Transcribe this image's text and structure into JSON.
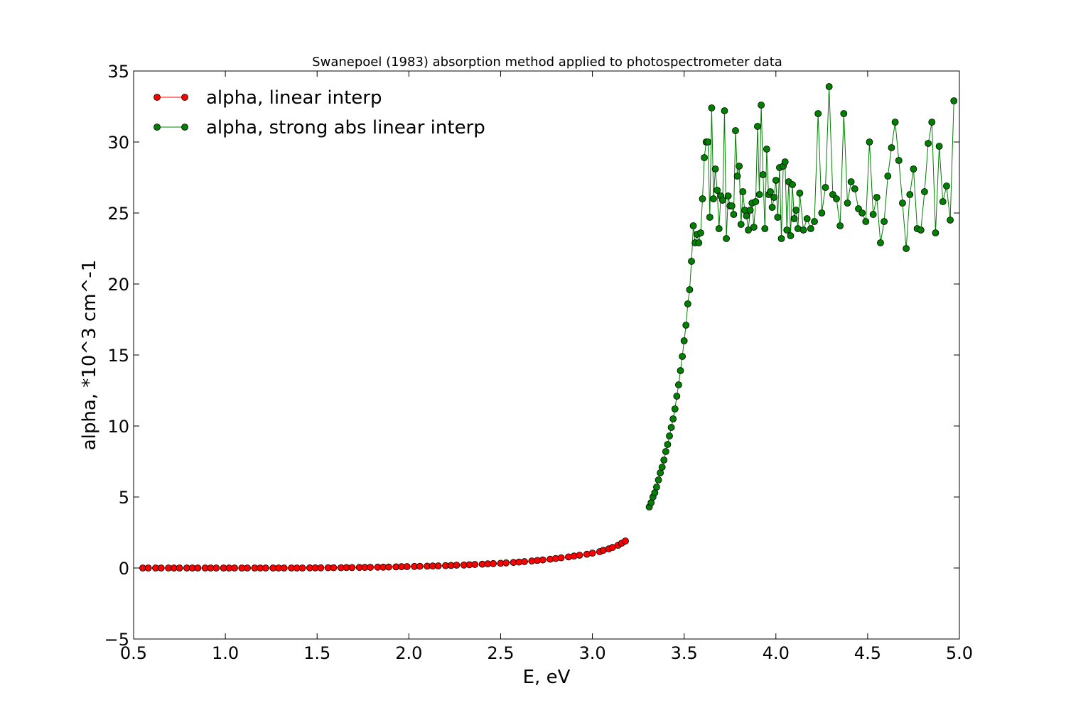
{
  "chart_data": {
    "type": "line",
    "title": "Swanepoel (1983) absorption method applied to photospectrometer data",
    "xlabel": "E, eV",
    "ylabel": "alpha, *10^3 cm^-1",
    "xlim": [
      0.5,
      5.0
    ],
    "ylim": [
      -5,
      35
    ],
    "xticks": [
      0.5,
      1.0,
      1.5,
      2.0,
      2.5,
      3.0,
      3.5,
      4.0,
      4.5,
      5.0
    ],
    "xtick_labels": [
      "0.5",
      "1.0",
      "1.5",
      "2.0",
      "2.5",
      "3.0",
      "3.5",
      "4.0",
      "4.5",
      "5.0"
    ],
    "yticks": [
      -5,
      0,
      5,
      10,
      15,
      20,
      25,
      30,
      35
    ],
    "ytick_labels": [
      "−5",
      "0",
      "5",
      "10",
      "15",
      "20",
      "25",
      "30",
      "35"
    ],
    "grid": false,
    "legend_position": "top-left",
    "series": [
      {
        "name": "alpha, linear interp",
        "color": "#ff0000",
        "x": [
          0.55,
          0.58,
          0.62,
          0.65,
          0.69,
          0.72,
          0.75,
          0.79,
          0.82,
          0.85,
          0.89,
          0.92,
          0.95,
          0.99,
          1.02,
          1.05,
          1.09,
          1.12,
          1.16,
          1.19,
          1.22,
          1.26,
          1.29,
          1.32,
          1.36,
          1.39,
          1.42,
          1.46,
          1.49,
          1.52,
          1.56,
          1.59,
          1.63,
          1.66,
          1.69,
          1.73,
          1.76,
          1.79,
          1.83,
          1.86,
          1.89,
          1.93,
          1.96,
          1.99,
          2.03,
          2.06,
          2.1,
          2.13,
          2.16,
          2.2,
          2.23,
          2.26,
          2.3,
          2.33,
          2.36,
          2.4,
          2.43,
          2.46,
          2.5,
          2.53,
          2.57,
          2.6,
          2.63,
          2.67,
          2.7,
          2.73,
          2.77,
          2.8,
          2.83,
          2.87,
          2.9,
          2.93,
          2.97,
          3.0,
          3.04,
          3.06,
          3.09,
          3.11,
          3.14,
          3.16,
          3.18
        ],
        "y": [
          0.0,
          0.0,
          0.0,
          0.0,
          0.0,
          0.0,
          0.0,
          0.0,
          0.0,
          0.0,
          0.0,
          0.0,
          0.0,
          0.0,
          0.0,
          0.0,
          0.0,
          0.0,
          0.0,
          0.0,
          0.0,
          0.0,
          0.0,
          0.0,
          0.0,
          0.0,
          0.0,
          0.01,
          0.01,
          0.01,
          0.02,
          0.02,
          0.02,
          0.03,
          0.03,
          0.04,
          0.04,
          0.05,
          0.06,
          0.06,
          0.07,
          0.08,
          0.09,
          0.1,
          0.11,
          0.12,
          0.13,
          0.14,
          0.15,
          0.17,
          0.18,
          0.2,
          0.21,
          0.23,
          0.25,
          0.27,
          0.29,
          0.31,
          0.33,
          0.36,
          0.39,
          0.42,
          0.45,
          0.49,
          0.53,
          0.57,
          0.62,
          0.67,
          0.72,
          0.78,
          0.84,
          0.9,
          0.97,
          1.05,
          1.15,
          1.25,
          1.35,
          1.45,
          1.6,
          1.75,
          1.9
        ]
      },
      {
        "name": "alpha, strong abs linear interp",
        "color": "#008000",
        "x": [
          3.31,
          3.32,
          3.33,
          3.34,
          3.35,
          3.36,
          3.37,
          3.38,
          3.39,
          3.4,
          3.41,
          3.42,
          3.43,
          3.44,
          3.45,
          3.46,
          3.47,
          3.48,
          3.49,
          3.5,
          3.51,
          3.52,
          3.53,
          3.54,
          3.55,
          3.56,
          3.57,
          3.58,
          3.59,
          3.6,
          3.61,
          3.62,
          3.63,
          3.64,
          3.65,
          3.66,
          3.67,
          3.68,
          3.69,
          3.7,
          3.71,
          3.72,
          3.73,
          3.74,
          3.75,
          3.76,
          3.77,
          3.78,
          3.79,
          3.8,
          3.81,
          3.82,
          3.83,
          3.84,
          3.85,
          3.86,
          3.87,
          3.88,
          3.89,
          3.9,
          3.91,
          3.92,
          3.93,
          3.94,
          3.95,
          3.96,
          3.97,
          3.98,
          3.99,
          4.0,
          4.01,
          4.02,
          4.03,
          4.04,
          4.05,
          4.06,
          4.07,
          4.08,
          4.09,
          4.1,
          4.11,
          4.12,
          4.13,
          4.15,
          4.17,
          4.19,
          4.21,
          4.23,
          4.25,
          4.27,
          4.29,
          4.31,
          4.33,
          4.35,
          4.37,
          4.39,
          4.41,
          4.43,
          4.45,
          4.47,
          4.49,
          4.51,
          4.53,
          4.55,
          4.57,
          4.59,
          4.61,
          4.63,
          4.65,
          4.67,
          4.69,
          4.71,
          4.73,
          4.75,
          4.77,
          4.79,
          4.81,
          4.83,
          4.85,
          4.87,
          4.89,
          4.91,
          4.93,
          4.95,
          4.97
        ],
        "y": [
          4.3,
          4.6,
          5.0,
          5.3,
          5.7,
          6.2,
          6.7,
          7.1,
          7.6,
          8.2,
          8.7,
          9.3,
          9.9,
          10.5,
          11.2,
          12.1,
          12.9,
          13.9,
          14.9,
          16.0,
          17.1,
          18.6,
          19.6,
          21.6,
          24.1,
          22.9,
          23.5,
          22.9,
          23.6,
          26.0,
          28.9,
          30.0,
          30.0,
          24.7,
          32.4,
          26.0,
          28.1,
          26.6,
          23.9,
          26.2,
          25.9,
          32.2,
          23.2,
          26.2,
          25.5,
          25.5,
          24.9,
          30.8,
          27.6,
          28.3,
          24.2,
          26.5,
          25.2,
          24.8,
          23.8,
          25.2,
          25.7,
          24.0,
          25.8,
          31.1,
          26.3,
          32.6,
          27.7,
          23.9,
          29.5,
          26.3,
          26.5,
          25.4,
          26.1,
          27.3,
          24.7,
          28.2,
          23.2,
          28.3,
          28.6,
          23.8,
          27.2,
          23.4,
          27.0,
          24.6,
          25.2,
          23.9,
          26.4,
          23.8,
          24.6,
          23.9,
          24.4,
          32.0,
          25.0,
          26.8,
          33.9,
          26.3,
          26.0,
          24.1,
          32.0,
          25.7,
          27.2,
          26.7,
          25.3,
          25.0,
          24.4,
          30.0,
          24.9,
          26.1,
          22.9,
          24.4,
          27.6,
          29.6,
          31.4,
          28.7,
          25.7,
          22.5,
          26.3,
          28.1,
          23.9,
          23.8,
          26.5,
          29.9,
          31.4,
          23.6,
          29.7,
          25.8,
          26.9,
          24.5,
          32.9
        ]
      }
    ]
  }
}
